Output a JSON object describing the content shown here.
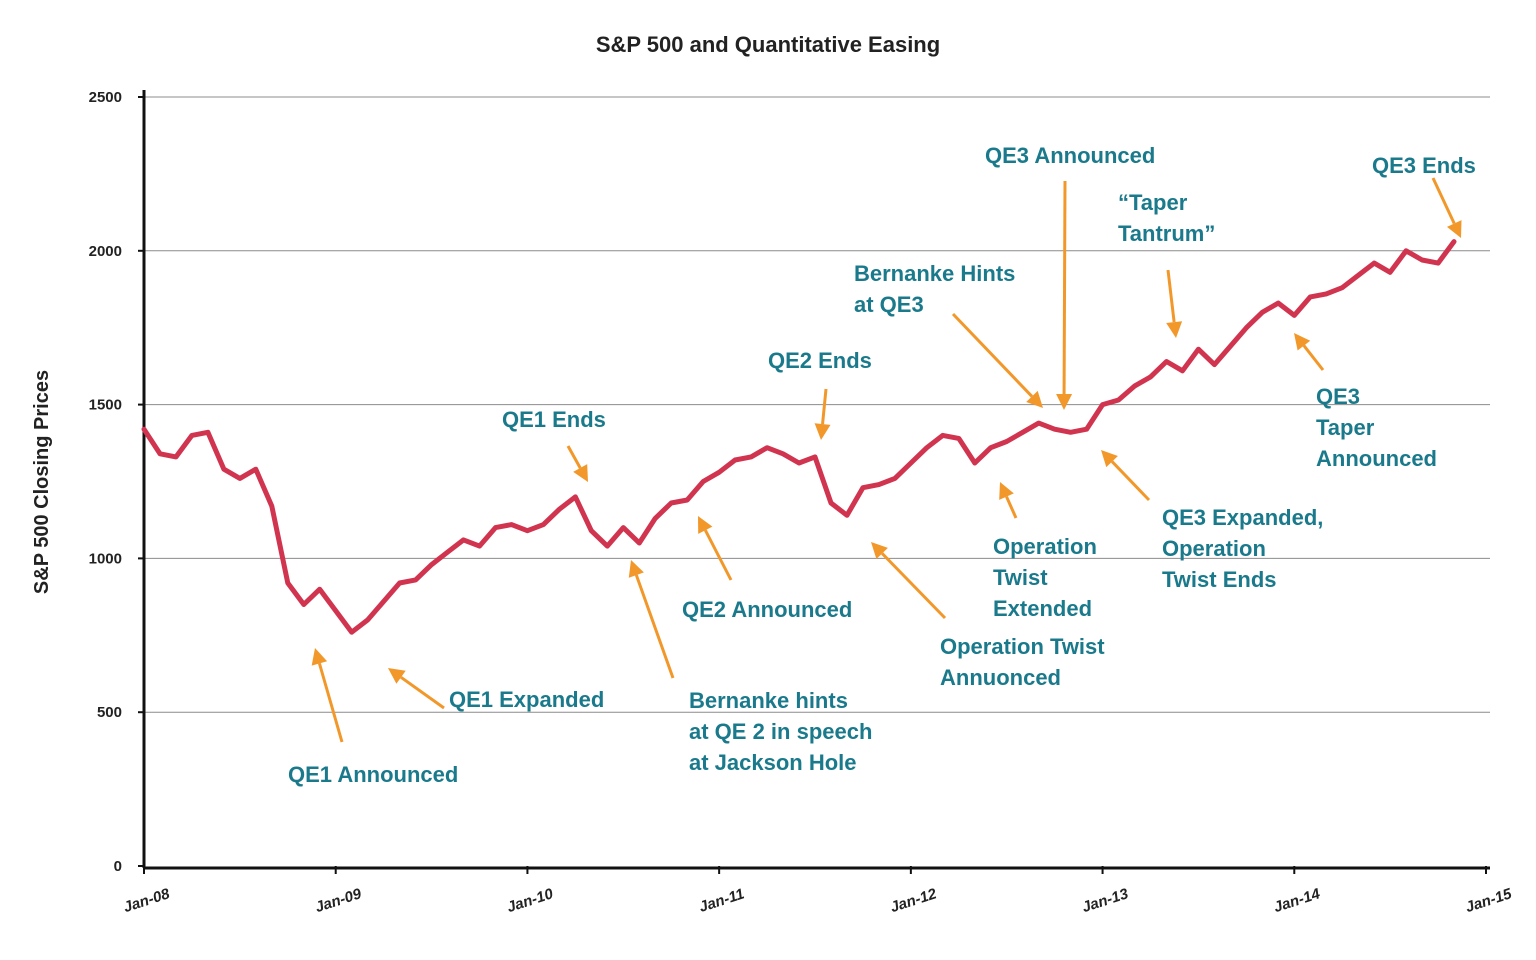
{
  "chart_data": {
    "type": "line",
    "title": "S&P 500 and Quantitative Easing",
    "ylabel": "S&P 500 Closing Prices",
    "xlabel": "",
    "ylim": [
      0,
      2500
    ],
    "yticks": [
      0,
      500,
      1000,
      1500,
      2000,
      2500
    ],
    "ytick_labels": [
      "0",
      "500",
      "1000",
      "1500",
      "2000",
      "2500"
    ],
    "xticks": [
      "2008-01",
      "2009-01",
      "2010-01",
      "2011-01",
      "2012-01",
      "2013-01",
      "2014-01",
      "2015-01"
    ],
    "xtick_labels": [
      "Jan-08",
      "Jan-09",
      "Jan-10",
      "Jan-11",
      "Jan-12",
      "Jan-13",
      "Jan-14",
      "Jan-15"
    ],
    "grid": "horizontal",
    "colors": {
      "line": "#d1344f",
      "annotation_text": "#1a7a8c",
      "arrow": "#f2982a"
    },
    "x": [
      "2008-01",
      "2008-02",
      "2008-03",
      "2008-04",
      "2008-05",
      "2008-06",
      "2008-07",
      "2008-08",
      "2008-09",
      "2008-10",
      "2008-11",
      "2008-12",
      "2009-01",
      "2009-02",
      "2009-03",
      "2009-04",
      "2009-05",
      "2009-06",
      "2009-07",
      "2009-08",
      "2009-09",
      "2009-10",
      "2009-11",
      "2009-12",
      "2010-01",
      "2010-02",
      "2010-03",
      "2010-04",
      "2010-05",
      "2010-06",
      "2010-07",
      "2010-08",
      "2010-09",
      "2010-10",
      "2010-11",
      "2010-12",
      "2011-01",
      "2011-02",
      "2011-03",
      "2011-04",
      "2011-05",
      "2011-06",
      "2011-07",
      "2011-08",
      "2011-09",
      "2011-10",
      "2011-11",
      "2011-12",
      "2012-01",
      "2012-02",
      "2012-03",
      "2012-04",
      "2012-05",
      "2012-06",
      "2012-07",
      "2012-08",
      "2012-09",
      "2012-10",
      "2012-11",
      "2012-12",
      "2013-01",
      "2013-02",
      "2013-03",
      "2013-04",
      "2013-05",
      "2013-06",
      "2013-07",
      "2013-08",
      "2013-09",
      "2013-10",
      "2013-11",
      "2013-12",
      "2014-01",
      "2014-02",
      "2014-03",
      "2014-04",
      "2014-05",
      "2014-06",
      "2014-07",
      "2014-08",
      "2014-09",
      "2014-10",
      "2014-11"
    ],
    "series": [
      {
        "values": [
          1420,
          1340,
          1330,
          1400,
          1410,
          1290,
          1260,
          1290,
          1170,
          920,
          850,
          900,
          830,
          760,
          800,
          860,
          920,
          930,
          980,
          1020,
          1060,
          1040,
          1100,
          1110,
          1090,
          1110,
          1160,
          1200,
          1090,
          1040,
          1100,
          1050,
          1130,
          1180,
          1190,
          1250,
          1280,
          1320,
          1330,
          1360,
          1340,
          1310,
          1330,
          1180,
          1140,
          1230,
          1240,
          1260,
          1310,
          1360,
          1400,
          1390,
          1310,
          1360,
          1380,
          1410,
          1440,
          1420,
          1410,
          1420,
          1500,
          1515,
          1560,
          1590,
          1640,
          1610,
          1680,
          1630,
          1690,
          1750,
          1800,
          1830,
          1790,
          1850,
          1860,
          1880,
          1920,
          1960,
          1930,
          2000,
          1970,
          1960,
          2030
        ]
      }
    ],
    "annotations": [
      {
        "lines": [
          "QE1 Announced"
        ],
        "date": "2008-11",
        "value": 760
      },
      {
        "lines": [
          "QE1 Expanded"
        ],
        "date": "2009-03",
        "value": 680
      },
      {
        "lines": [
          "QE1 Ends"
        ],
        "date": "2010-03",
        "value": 1220
      },
      {
        "lines": [
          "Bernanke hints",
          "at QE 2 in speech",
          "at Jackson Hole"
        ],
        "date": "2010-08",
        "value": 1050
      },
      {
        "lines": [
          "QE2 Announced"
        ],
        "date": "2010-11",
        "value": 1200
      },
      {
        "lines": [
          "QE2 Ends"
        ],
        "date": "2011-06",
        "value": 1340
      },
      {
        "lines": [
          "Operation Twist",
          "Annuonced"
        ],
        "date": "2011-09",
        "value": 1130
      },
      {
        "lines": [
          "Operation",
          "Twist",
          "Extended"
        ],
        "date": "2012-06",
        "value": 1300
      },
      {
        "lines": [
          "Bernanke Hints",
          "at QE3"
        ],
        "date": "2012-08",
        "value": 1410
      },
      {
        "lines": [
          "QE3 Announced"
        ],
        "date": "2012-09",
        "value": 1440
      },
      {
        "lines": [
          "QE3 Expanded,",
          "Operation",
          "Twist Ends"
        ],
        "date": "2012-12",
        "value": 1410
      },
      {
        "lines": [
          "“Taper",
          "Tantrum”"
        ],
        "date": "2013-05",
        "value": 1670
      },
      {
        "lines": [
          "QE3",
          "Taper",
          "Announced"
        ],
        "date": "2013-12",
        "value": 1750
      },
      {
        "lines": [
          "QE3 Ends"
        ],
        "date": "2014-10",
        "value": 2030
      }
    ]
  }
}
